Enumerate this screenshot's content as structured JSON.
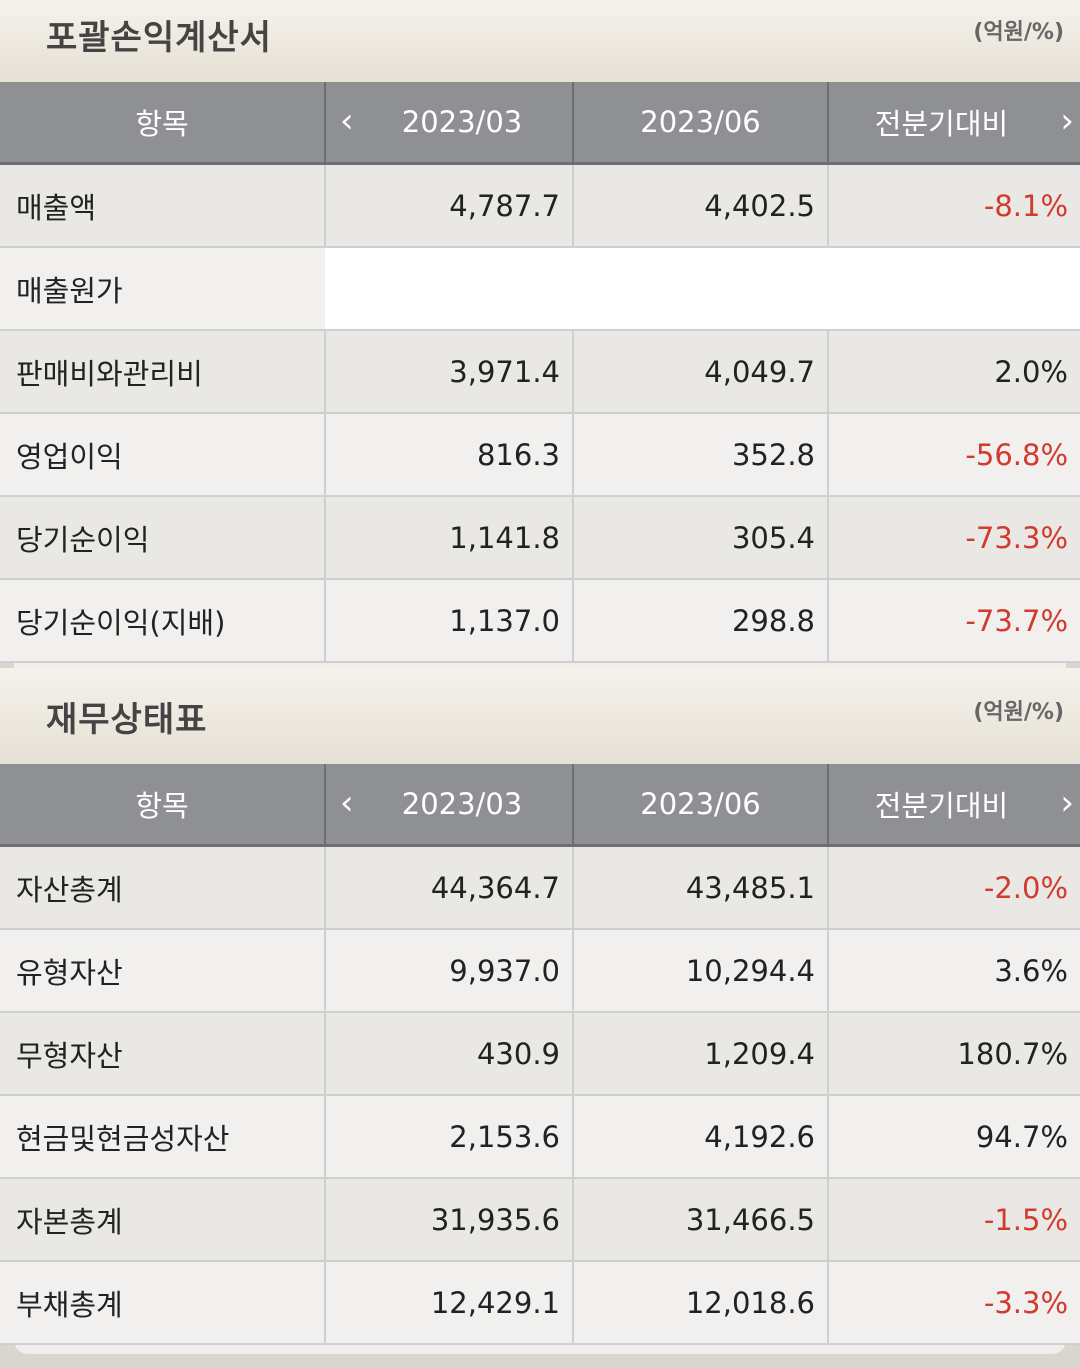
{
  "income": {
    "title": "포괄손익계산서",
    "unit": "(억원/%)",
    "headers": [
      "항목",
      "2023/03",
      "2023/06",
      "전분기대비"
    ],
    "rows": [
      {
        "label": "매출액",
        "q1": "4,787.7",
        "q2": "4,402.5",
        "chg": "-8.1%",
        "neg": true
      },
      {
        "label": "매출원가",
        "q1": "",
        "q2": "",
        "chg": "",
        "neg": false
      },
      {
        "label": "판매비와관리비",
        "q1": "3,971.4",
        "q2": "4,049.7",
        "chg": "2.0%",
        "neg": false
      },
      {
        "label": "영업이익",
        "q1": "816.3",
        "q2": "352.8",
        "chg": "-56.8%",
        "neg": true
      },
      {
        "label": "당기순이익",
        "q1": "1,141.8",
        "q2": "305.4",
        "chg": "-73.3%",
        "neg": true
      },
      {
        "label": "당기순이익(지배)",
        "q1": "1,137.0",
        "q2": "298.8",
        "chg": "-73.7%",
        "neg": true
      }
    ]
  },
  "balance": {
    "title": "재무상태표",
    "unit": "(억원/%)",
    "headers": [
      "항목",
      "2023/03",
      "2023/06",
      "전분기대비"
    ],
    "rows": [
      {
        "label": "자산총계",
        "q1": "44,364.7",
        "q2": "43,485.1",
        "chg": "-2.0%",
        "neg": true
      },
      {
        "label": "유형자산",
        "q1": "9,937.0",
        "q2": "10,294.4",
        "chg": "3.6%",
        "neg": false
      },
      {
        "label": "무형자산",
        "q1": "430.9",
        "q2": "1,209.4",
        "chg": "180.7%",
        "neg": false
      },
      {
        "label": "현금및현금성자산",
        "q1": "2,153.6",
        "q2": "4,192.6",
        "chg": "94.7%",
        "neg": false
      },
      {
        "label": "자본총계",
        "q1": "31,935.6",
        "q2": "31,466.5",
        "chg": "-1.5%",
        "neg": true
      },
      {
        "label": "부채총계",
        "q1": "12,429.1",
        "q2": "12,018.6",
        "chg": "-3.3%",
        "neg": true
      }
    ]
  },
  "colors": {
    "negative": "#d23a2e",
    "header_bg": "#8e9094"
  },
  "icons": {
    "prev": "chevron-left-icon",
    "next": "chevron-right-icon"
  }
}
